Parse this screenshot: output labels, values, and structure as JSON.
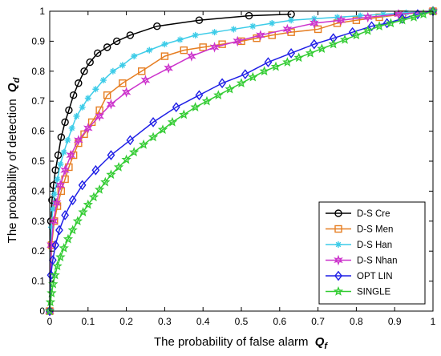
{
  "chart_data": {
    "type": "line",
    "xlabel": "The probability of false alarm",
    "xlabel_symbol": "Q",
    "xlabel_sub": "f",
    "ylabel": "The probability of detection",
    "ylabel_symbol": "Q",
    "ylabel_sub": "d",
    "xlim": [
      0,
      1
    ],
    "ylim": [
      0,
      1
    ],
    "xticks": [
      "0",
      "0.1",
      "0.2",
      "0.3",
      "0.4",
      "0.5",
      "0.6",
      "0.7",
      "0.8",
      "0.9",
      "1"
    ],
    "yticks": [
      "0",
      "0.1",
      "0.2",
      "0.3",
      "0.4",
      "0.5",
      "0.6",
      "0.7",
      "0.8",
      "0.9",
      "1"
    ],
    "grid": false,
    "legend_position": "bottom-right",
    "series": [
      {
        "name": "D-S Cre",
        "color": "#000000",
        "marker": "circle",
        "x": [
          0,
          0.003,
          0.006,
          0.01,
          0.015,
          0.022,
          0.03,
          0.04,
          0.05,
          0.062,
          0.075,
          0.09,
          0.105,
          0.125,
          0.15,
          0.175,
          0.21,
          0.28,
          0.39,
          0.52,
          0.63
        ],
        "y": [
          0,
          0.3,
          0.37,
          0.42,
          0.47,
          0.52,
          0.58,
          0.63,
          0.67,
          0.72,
          0.76,
          0.8,
          0.83,
          0.86,
          0.88,
          0.9,
          0.92,
          0.95,
          0.97,
          0.985,
          0.99
        ]
      },
      {
        "name": "D-S Men",
        "color": "#E67E22",
        "marker": "square",
        "x": [
          0,
          0.005,
          0.012,
          0.02,
          0.03,
          0.04,
          0.05,
          0.062,
          0.075,
          0.09,
          0.11,
          0.13,
          0.15,
          0.19,
          0.24,
          0.3,
          0.35,
          0.4,
          0.45,
          0.5,
          0.54,
          0.58,
          0.63,
          0.7,
          0.75,
          0.8,
          0.86,
          0.92,
          1.0
        ],
        "y": [
          0,
          0.22,
          0.3,
          0.35,
          0.4,
          0.44,
          0.48,
          0.52,
          0.56,
          0.59,
          0.63,
          0.67,
          0.72,
          0.76,
          0.8,
          0.85,
          0.87,
          0.88,
          0.89,
          0.9,
          0.91,
          0.92,
          0.93,
          0.94,
          0.96,
          0.97,
          0.98,
          0.99,
          1.0
        ]
      },
      {
        "name": "D-S Han",
        "color": "#3DCCE8",
        "marker": "asterisk",
        "x": [
          0,
          0.004,
          0.008,
          0.012,
          0.02,
          0.028,
          0.037,
          0.047,
          0.058,
          0.07,
          0.085,
          0.1,
          0.12,
          0.14,
          0.165,
          0.19,
          0.22,
          0.26,
          0.3,
          0.34,
          0.38,
          0.43,
          0.48,
          0.53,
          0.58,
          0.63,
          0.69,
          0.75,
          0.81,
          0.87,
          0.93,
          1.0
        ],
        "y": [
          0,
          0.28,
          0.34,
          0.39,
          0.44,
          0.49,
          0.53,
          0.57,
          0.61,
          0.65,
          0.68,
          0.71,
          0.74,
          0.77,
          0.8,
          0.82,
          0.85,
          0.87,
          0.89,
          0.905,
          0.92,
          0.93,
          0.94,
          0.95,
          0.96,
          0.97,
          0.975,
          0.98,
          0.985,
          0.99,
          0.995,
          1.0
        ]
      },
      {
        "name": "D-S Nhan",
        "color": "#CC33CC",
        "marker": "star6",
        "x": [
          0,
          0.004,
          0.01,
          0.018,
          0.028,
          0.04,
          0.055,
          0.075,
          0.1,
          0.13,
          0.16,
          0.2,
          0.25,
          0.31,
          0.37,
          0.43,
          0.49,
          0.55,
          0.62,
          0.69,
          0.76,
          0.83,
          0.91,
          1.0
        ],
        "y": [
          0,
          0.22,
          0.3,
          0.36,
          0.42,
          0.47,
          0.52,
          0.57,
          0.61,
          0.65,
          0.69,
          0.73,
          0.77,
          0.81,
          0.85,
          0.88,
          0.9,
          0.92,
          0.94,
          0.96,
          0.97,
          0.98,
          0.99,
          1.0
        ]
      },
      {
        "name": "OPT LIN",
        "color": "#1F1FE6",
        "marker": "diamond",
        "x": [
          0,
          0.003,
          0.008,
          0.015,
          0.025,
          0.04,
          0.06,
          0.085,
          0.12,
          0.16,
          0.21,
          0.27,
          0.33,
          0.39,
          0.45,
          0.51,
          0.57,
          0.63,
          0.69,
          0.74,
          0.79,
          0.84,
          0.88,
          0.92,
          0.96,
          1.0
        ],
        "y": [
          0,
          0.12,
          0.17,
          0.22,
          0.27,
          0.32,
          0.37,
          0.42,
          0.47,
          0.52,
          0.57,
          0.63,
          0.68,
          0.72,
          0.76,
          0.79,
          0.83,
          0.86,
          0.89,
          0.91,
          0.93,
          0.95,
          0.96,
          0.975,
          0.99,
          1.0
        ]
      },
      {
        "name": "SINGLE",
        "color": "#33CC33",
        "marker": "pentagram",
        "x": [
          0,
          0.002,
          0.005,
          0.009,
          0.014,
          0.02,
          0.028,
          0.037,
          0.048,
          0.06,
          0.073,
          0.087,
          0.1,
          0.115,
          0.13,
          0.145,
          0.16,
          0.18,
          0.2,
          0.22,
          0.245,
          0.27,
          0.295,
          0.32,
          0.35,
          0.38,
          0.41,
          0.44,
          0.47,
          0.5,
          0.53,
          0.56,
          0.59,
          0.62,
          0.65,
          0.68,
          0.71,
          0.74,
          0.77,
          0.8,
          0.83,
          0.86,
          0.89,
          0.92,
          0.95,
          0.975,
          1.0
        ],
        "y": [
          0,
          0.03,
          0.06,
          0.09,
          0.12,
          0.15,
          0.18,
          0.21,
          0.24,
          0.27,
          0.3,
          0.33,
          0.355,
          0.38,
          0.405,
          0.43,
          0.455,
          0.48,
          0.505,
          0.53,
          0.555,
          0.58,
          0.605,
          0.63,
          0.655,
          0.68,
          0.7,
          0.72,
          0.74,
          0.76,
          0.78,
          0.8,
          0.815,
          0.83,
          0.845,
          0.86,
          0.875,
          0.89,
          0.905,
          0.92,
          0.935,
          0.95,
          0.96,
          0.97,
          0.98,
          0.99,
          1.0
        ]
      }
    ]
  }
}
